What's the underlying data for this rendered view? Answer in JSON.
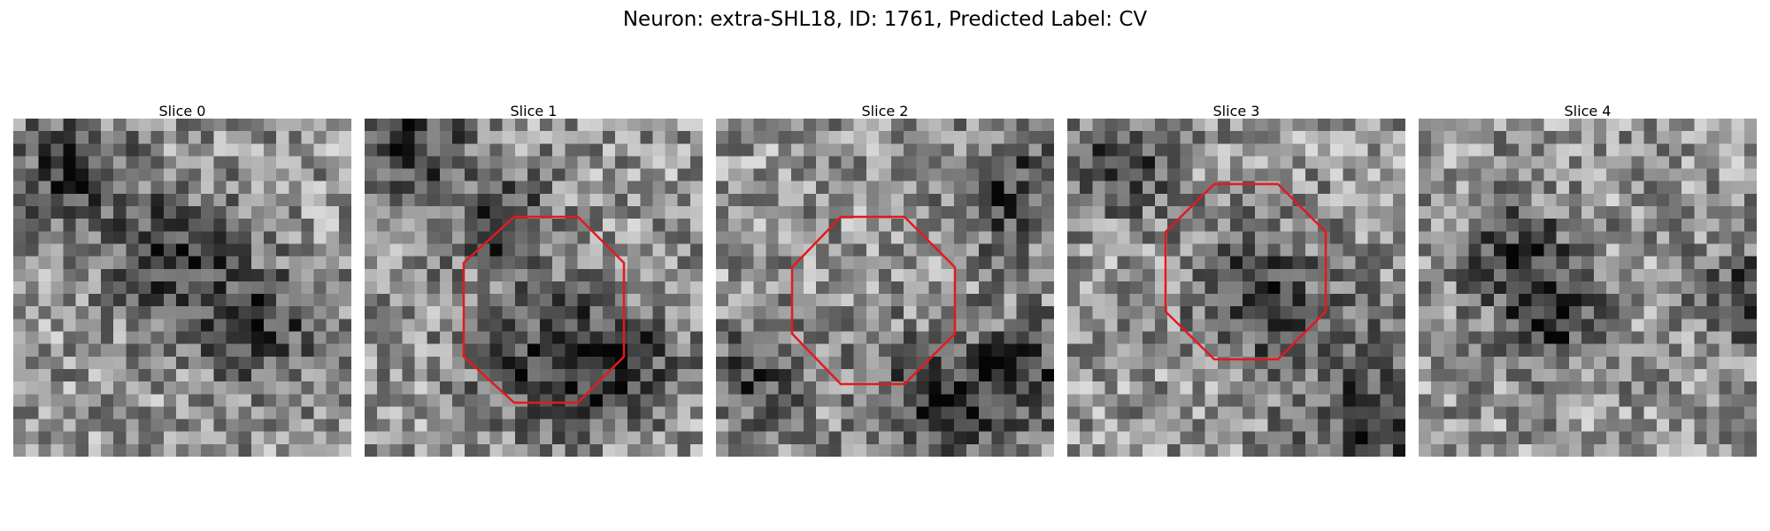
{
  "figure": {
    "title": "Neuron: extra-SHL18, ID: 1761, Predicted Label: CV"
  },
  "slices": [
    {
      "label": "Slice 0",
      "has_roi": false,
      "dark_spots": [
        [
          0.45,
          0.4,
          0.3
        ],
        [
          0.72,
          0.6,
          0.25
        ],
        [
          0.15,
          0.15,
          0.25
        ]
      ]
    },
    {
      "label": "Slice 1",
      "has_roi": true,
      "dark_spots": [
        [
          0.1,
          0.08,
          0.3
        ],
        [
          0.5,
          0.7,
          0.3
        ],
        [
          0.75,
          0.7,
          0.25
        ],
        [
          0.4,
          0.3,
          0.2
        ]
      ]
    },
    {
      "label": "Slice 2",
      "has_roi": true,
      "dark_spots": [
        [
          0.85,
          0.2,
          0.25
        ],
        [
          0.62,
          0.82,
          0.3
        ],
        [
          0.1,
          0.75,
          0.2
        ],
        [
          0.9,
          0.75,
          0.25
        ]
      ]
    },
    {
      "label": "Slice 3",
      "has_roi": true,
      "dark_spots": [
        [
          0.55,
          0.5,
          0.28
        ],
        [
          0.9,
          0.85,
          0.35
        ],
        [
          0.15,
          0.12,
          0.2
        ]
      ]
    },
    {
      "label": "Slice 4",
      "has_roi": false,
      "dark_spots": [
        [
          0.28,
          0.4,
          0.25
        ],
        [
          0.4,
          0.57,
          0.2
        ],
        [
          0.95,
          0.5,
          0.2
        ]
      ]
    }
  ],
  "roi_color": "#e31a1c"
}
